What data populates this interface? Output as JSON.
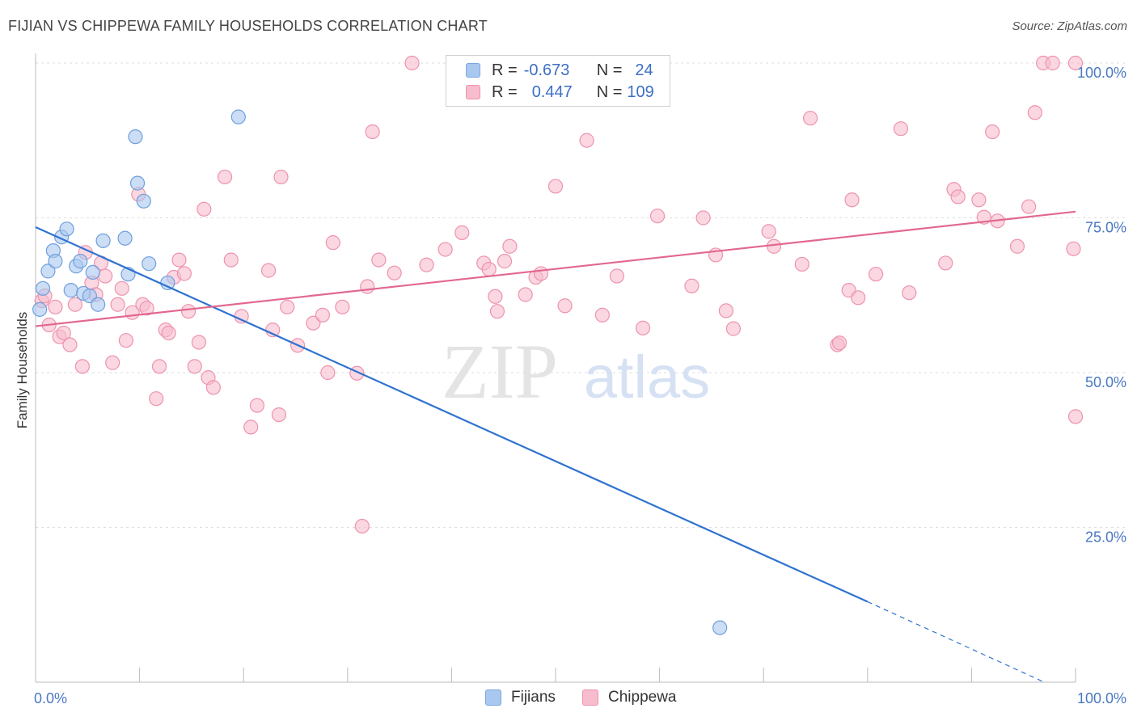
{
  "header": {
    "title": "FIJIAN VS CHIPPEWA FAMILY HOUSEHOLDS CORRELATION CHART",
    "source": "Source: ZipAtlas.com"
  },
  "watermark": {
    "zip": "ZIP",
    "atlas": "atlas"
  },
  "legend": {
    "rows": [
      {
        "r_label": "R =",
        "r_value": "-0.673",
        "n_label": "N =",
        "n_value": "24",
        "color": "#a9c8f0",
        "border": "#7aa6e0"
      },
      {
        "r_label": "R =",
        "r_value": "0.447",
        "n_label": "N =",
        "n_value": "109",
        "color": "#f7bccd",
        "border": "#ee93ad"
      }
    ]
  },
  "bottom_legend": {
    "fijians": "Fijians",
    "chippewa": "Chippewa"
  },
  "chart_data": {
    "type": "scatter",
    "title": "FIJIAN VS CHIPPEWA FAMILY HOUSEHOLDS CORRELATION CHART",
    "xlabel": "",
    "ylabel": "Family Households",
    "xlim": [
      0,
      100
    ],
    "ylim": [
      0,
      100
    ],
    "x_tick_labels": [
      "0.0%",
      "100.0%"
    ],
    "y_ticks": [
      25,
      50,
      75,
      100
    ],
    "y_tick_labels": [
      "25.0%",
      "50.0%",
      "75.0%",
      "100.0%"
    ],
    "grid": true,
    "legend_position": "top-center",
    "series": [
      {
        "name": "Fijians",
        "color": "#a9c8f0",
        "stroke": "#6f9fdc",
        "line_color": "#2f72d0",
        "trend": {
          "x0": 0,
          "y0": 73.5,
          "x1": 80,
          "y1": 13.0,
          "dash_to_x": 97,
          "dash_to_y": 0
        },
        "points": [
          [
            0.4,
            60.2
          ],
          [
            0.7,
            63.6
          ],
          [
            1.2,
            66.4
          ],
          [
            1.7,
            69.7
          ],
          [
            1.9,
            68.0
          ],
          [
            2.5,
            71.9
          ],
          [
            3.0,
            73.2
          ],
          [
            3.4,
            63.3
          ],
          [
            3.9,
            67.2
          ],
          [
            4.3,
            68.0
          ],
          [
            4.6,
            62.8
          ],
          [
            5.2,
            62.4
          ],
          [
            5.5,
            66.2
          ],
          [
            6.0,
            61.0
          ],
          [
            6.5,
            71.3
          ],
          [
            8.6,
            71.7
          ],
          [
            8.9,
            65.9
          ],
          [
            9.6,
            88.1
          ],
          [
            9.8,
            80.6
          ],
          [
            10.4,
            77.7
          ],
          [
            10.9,
            67.6
          ],
          [
            12.7,
            64.5
          ],
          [
            19.5,
            91.3
          ],
          [
            65.8,
            8.8
          ]
        ]
      },
      {
        "name": "Chippewa",
        "color": "#f7bccd",
        "stroke": "#ee93ad",
        "line_color": "#e2678f",
        "trend": {
          "x0": 0,
          "y0": 57.5,
          "x1": 100,
          "y1": 76.0
        },
        "points": [
          [
            0.6,
            61.6
          ],
          [
            0.9,
            62.4
          ],
          [
            1.3,
            57.7
          ],
          [
            1.9,
            60.6
          ],
          [
            2.3,
            55.8
          ],
          [
            2.7,
            56.4
          ],
          [
            3.3,
            54.5
          ],
          [
            3.8,
            61.0
          ],
          [
            4.5,
            51.0
          ],
          [
            4.8,
            69.4
          ],
          [
            5.4,
            64.5
          ],
          [
            5.8,
            62.6
          ],
          [
            6.3,
            67.7
          ],
          [
            6.7,
            65.6
          ],
          [
            7.4,
            51.6
          ],
          [
            7.9,
            61.0
          ],
          [
            8.3,
            63.6
          ],
          [
            8.7,
            55.2
          ],
          [
            9.3,
            59.7
          ],
          [
            9.9,
            78.8
          ],
          [
            10.3,
            61.0
          ],
          [
            10.7,
            60.4
          ],
          [
            11.6,
            45.8
          ],
          [
            11.9,
            51.0
          ],
          [
            12.5,
            56.9
          ],
          [
            12.8,
            56.4
          ],
          [
            13.3,
            65.4
          ],
          [
            13.8,
            68.2
          ],
          [
            14.3,
            66.0
          ],
          [
            14.7,
            59.9
          ],
          [
            15.3,
            51.0
          ],
          [
            15.7,
            54.9
          ],
          [
            16.2,
            76.4
          ],
          [
            16.6,
            49.2
          ],
          [
            17.1,
            47.6
          ],
          [
            18.2,
            81.6
          ],
          [
            18.8,
            68.2
          ],
          [
            19.8,
            59.1
          ],
          [
            20.7,
            41.2
          ],
          [
            21.3,
            44.7
          ],
          [
            22.4,
            66.5
          ],
          [
            22.8,
            56.9
          ],
          [
            23.4,
            43.2
          ],
          [
            23.6,
            81.6
          ],
          [
            24.2,
            60.6
          ],
          [
            25.2,
            54.4
          ],
          [
            26.7,
            58.0
          ],
          [
            27.6,
            59.3
          ],
          [
            28.1,
            50.0
          ],
          [
            28.6,
            71.0
          ],
          [
            29.5,
            60.6
          ],
          [
            30.9,
            49.9
          ],
          [
            31.4,
            25.2
          ],
          [
            31.9,
            63.9
          ],
          [
            32.4,
            88.9
          ],
          [
            33.0,
            68.2
          ],
          [
            34.5,
            66.1
          ],
          [
            36.2,
            100.0
          ],
          [
            37.6,
            67.4
          ],
          [
            39.4,
            69.9
          ],
          [
            41.0,
            72.6
          ],
          [
            43.1,
            67.7
          ],
          [
            43.6,
            66.7
          ],
          [
            44.2,
            62.3
          ],
          [
            44.4,
            59.9
          ],
          [
            45.1,
            68.0
          ],
          [
            45.6,
            70.4
          ],
          [
            47.1,
            62.6
          ],
          [
            48.1,
            65.4
          ],
          [
            48.6,
            66.0
          ],
          [
            50.0,
            80.1
          ],
          [
            50.9,
            60.8
          ],
          [
            53.0,
            87.5
          ],
          [
            54.5,
            59.3
          ],
          [
            55.9,
            65.6
          ],
          [
            58.4,
            57.2
          ],
          [
            59.8,
            75.3
          ],
          [
            63.1,
            64.0
          ],
          [
            64.2,
            75.0
          ],
          [
            65.4,
            69.0
          ],
          [
            66.4,
            60.0
          ],
          [
            67.1,
            57.1
          ],
          [
            70.5,
            72.8
          ],
          [
            71.0,
            70.4
          ],
          [
            73.7,
            67.5
          ],
          [
            74.5,
            91.1
          ],
          [
            77.1,
            54.5
          ],
          [
            77.3,
            54.8
          ],
          [
            78.2,
            63.3
          ],
          [
            78.5,
            77.9
          ],
          [
            79.1,
            62.1
          ],
          [
            80.8,
            65.9
          ],
          [
            83.2,
            89.4
          ],
          [
            84.0,
            62.9
          ],
          [
            87.5,
            67.7
          ],
          [
            88.3,
            79.6
          ],
          [
            88.7,
            78.4
          ],
          [
            90.7,
            77.9
          ],
          [
            91.2,
            75.1
          ],
          [
            92.0,
            88.9
          ],
          [
            92.5,
            74.5
          ],
          [
            94.4,
            70.4
          ],
          [
            95.5,
            76.8
          ],
          [
            96.1,
            92.0
          ],
          [
            96.9,
            100.0
          ],
          [
            97.8,
            100.0
          ],
          [
            99.8,
            70.0
          ],
          [
            100.0,
            42.9
          ],
          [
            100.0,
            100.0
          ]
        ]
      }
    ]
  }
}
